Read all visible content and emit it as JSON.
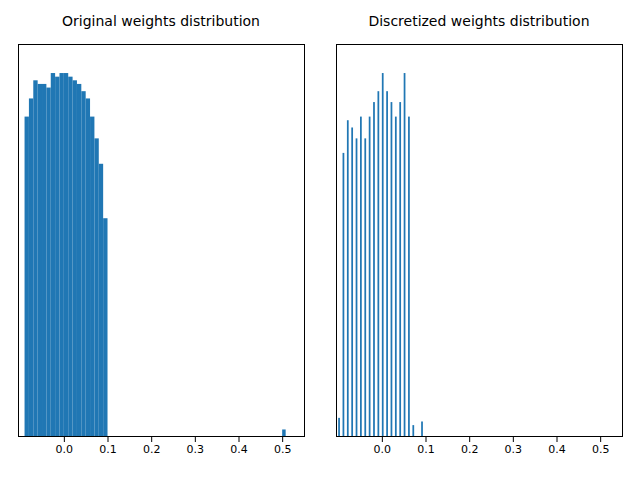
{
  "chart_data": [
    {
      "type": "bar",
      "title": "Original weights distribution",
      "x": [
        -0.09,
        -0.08,
        -0.07,
        -0.06,
        -0.05,
        -0.04,
        -0.03,
        -0.02,
        -0.01,
        0.0,
        0.01,
        0.02,
        0.03,
        0.04,
        0.05,
        0.06,
        0.07,
        0.08,
        0.09,
        0.5
      ],
      "widths": [
        0.01,
        0.01,
        0.01,
        0.01,
        0.01,
        0.01,
        0.01,
        0.01,
        0.01,
        0.01,
        0.01,
        0.01,
        0.01,
        0.01,
        0.01,
        0.01,
        0.01,
        0.01,
        0.01,
        0.008
      ],
      "values": [
        0.88,
        0.93,
        0.98,
        0.97,
        0.97,
        0.96,
        1.0,
        0.99,
        1.0,
        1.0,
        0.99,
        0.98,
        0.97,
        0.95,
        0.93,
        0.88,
        0.82,
        0.75,
        0.6,
        0.018
      ],
      "color": "#2077b4",
      "xlim": [
        -0.105,
        0.55
      ],
      "xticks": [
        {
          "value": 0.0,
          "label": "0.0"
        },
        0.1,
        0.2,
        0.3,
        0.4,
        0.5
      ],
      "ylim": [
        0,
        1.08
      ],
      "tick_labels": "x"
    },
    {
      "type": "bar",
      "title": "Discretized weights distribution",
      "x": [
        -0.1,
        -0.09,
        -0.08,
        -0.07,
        -0.06,
        -0.05,
        -0.04,
        -0.03,
        -0.02,
        -0.01,
        0.0,
        0.01,
        0.02,
        0.03,
        0.04,
        0.05,
        0.06,
        0.07,
        0.09
      ],
      "widths": [
        0.004,
        0.004,
        0.004,
        0.004,
        0.004,
        0.004,
        0.004,
        0.004,
        0.004,
        0.004,
        0.004,
        0.004,
        0.004,
        0.004,
        0.004,
        0.004,
        0.004,
        0.004,
        0.004
      ],
      "values": [
        0.05,
        0.78,
        0.87,
        0.85,
        0.82,
        0.88,
        0.82,
        0.88,
        0.92,
        0.95,
        1.0,
        0.95,
        0.92,
        0.88,
        0.92,
        1.0,
        0.88,
        0.03,
        0.04
      ],
      "color": "#2077b4",
      "xlim": [
        -0.105,
        0.55
      ],
      "xticks": [
        {
          "value": 0.0,
          "label": "0.0"
        },
        0.1,
        0.2,
        0.3,
        0.4,
        0.5
      ],
      "ylim": [
        0,
        1.08
      ],
      "tick_labels": "x"
    }
  ]
}
